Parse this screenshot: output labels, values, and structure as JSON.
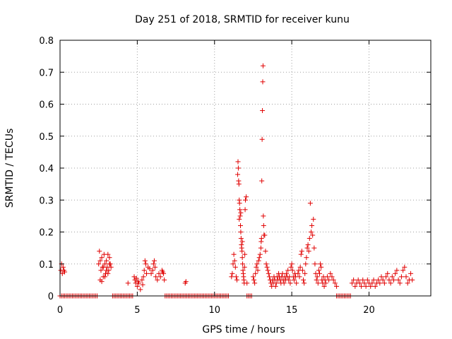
{
  "chart_data": {
    "type": "scatter",
    "title": "Day 251 of 2018, SRMTID for receiver kunu",
    "xlabel": "GPS time / hours",
    "ylabel": "SRMTID / TECUs",
    "xlim": [
      0,
      24
    ],
    "ylim": [
      0,
      0.8
    ],
    "xticks": [
      0,
      5,
      10,
      15,
      20
    ],
    "xtick_labels": [
      "0",
      "5",
      "10",
      "15",
      "20"
    ],
    "yticks": [
      0,
      0.1,
      0.2,
      0.3,
      0.4,
      0.5,
      0.6,
      0.7,
      0.8
    ],
    "ytick_labels": [
      "0",
      "0.1",
      "0.2",
      "0.3",
      "0.4",
      "0.5",
      "0.6",
      "0.7",
      "0.8"
    ],
    "grid": true,
    "marker": "+",
    "color": "#e00000",
    "series": [
      {
        "name": "SRMTID",
        "points": [
          [
            0.05,
            0.08
          ],
          [
            0.1,
            0.1
          ],
          [
            0.15,
            0.07
          ],
          [
            0.2,
            0.09
          ],
          [
            0.25,
            0.08
          ],
          [
            0.3,
            0.075
          ],
          [
            2.5,
            0.1
          ],
          [
            2.55,
            0.14
          ],
          [
            2.6,
            0.05
          ],
          [
            2.65,
            0.08
          ],
          [
            2.7,
            0.12
          ],
          [
            2.75,
            0.09
          ],
          [
            2.8,
            0.06
          ],
          [
            2.85,
            0.13
          ],
          [
            2.9,
            0.1
          ],
          [
            2.95,
            0.07
          ],
          [
            3.0,
            0.11
          ],
          [
            3.05,
            0.09
          ],
          [
            3.1,
            0.13
          ],
          [
            3.15,
            0.08
          ],
          [
            3.2,
            0.12
          ],
          [
            3.25,
            0.1
          ],
          [
            3.3,
            0.09
          ],
          [
            2.6,
            0.11
          ],
          [
            2.8,
            0.09
          ],
          [
            3.0,
            0.08
          ],
          [
            3.2,
            0.1
          ],
          [
            2.7,
            0.045
          ],
          [
            2.9,
            0.06
          ],
          [
            3.1,
            0.07
          ],
          [
            4.4,
            0.04
          ],
          [
            4.8,
            0.06
          ],
          [
            4.85,
            0.05
          ],
          [
            4.9,
            0.04
          ],
          [
            4.95,
            0.055
          ],
          [
            5.0,
            0.03
          ],
          [
            5.05,
            0.045
          ],
          [
            5.1,
            0.04
          ],
          [
            5.2,
            0.02
          ],
          [
            5.3,
            0.05
          ],
          [
            5.35,
            0.035
          ],
          [
            5.4,
            0.06
          ],
          [
            5.45,
            0.08
          ],
          [
            5.5,
            0.11
          ],
          [
            5.55,
            0.1
          ],
          [
            5.6,
            0.07
          ],
          [
            5.7,
            0.09
          ],
          [
            5.8,
            0.085
          ],
          [
            5.9,
            0.07
          ],
          [
            6.0,
            0.08
          ],
          [
            6.05,
            0.1
          ],
          [
            6.1,
            0.11
          ],
          [
            6.15,
            0.09
          ],
          [
            6.2,
            0.06
          ],
          [
            6.3,
            0.05
          ],
          [
            6.4,
            0.07
          ],
          [
            6.5,
            0.06
          ],
          [
            6.6,
            0.08
          ],
          [
            6.65,
            0.075
          ],
          [
            6.7,
            0.07
          ],
          [
            6.75,
            0.05
          ],
          [
            8.1,
            0.04
          ],
          [
            8.15,
            0.045
          ],
          [
            11.1,
            0.06
          ],
          [
            11.15,
            0.07
          ],
          [
            11.2,
            0.1
          ],
          [
            11.25,
            0.13
          ],
          [
            11.3,
            0.11
          ],
          [
            11.35,
            0.09
          ],
          [
            11.4,
            0.06
          ],
          [
            11.45,
            0.05
          ],
          [
            11.5,
            0.38
          ],
          [
            11.52,
            0.42
          ],
          [
            11.54,
            0.4
          ],
          [
            11.56,
            0.36
          ],
          [
            11.58,
            0.35
          ],
          [
            11.6,
            0.3
          ],
          [
            11.62,
            0.29
          ],
          [
            11.64,
            0.27
          ],
          [
            11.66,
            0.25
          ],
          [
            11.68,
            0.22
          ],
          [
            11.7,
            0.2
          ],
          [
            11.72,
            0.18
          ],
          [
            11.74,
            0.16
          ],
          [
            11.76,
            0.15
          ],
          [
            11.78,
            0.14
          ],
          [
            11.8,
            0.12
          ],
          [
            11.82,
            0.1
          ],
          [
            11.84,
            0.08
          ],
          [
            11.86,
            0.07
          ],
          [
            11.88,
            0.06
          ],
          [
            11.9,
            0.05
          ],
          [
            11.92,
            0.04
          ],
          [
            11.94,
            0.09
          ],
          [
            11.96,
            0.13
          ],
          [
            11.98,
            0.27
          ],
          [
            12.0,
            0.3
          ],
          [
            12.05,
            0.31
          ],
          [
            12.1,
            0.04
          ],
          [
            11.6,
            0.24
          ],
          [
            11.7,
            0.26
          ],
          [
            11.8,
            0.17
          ],
          [
            12.5,
            0.06
          ],
          [
            12.55,
            0.05
          ],
          [
            12.6,
            0.04
          ],
          [
            12.65,
            0.07
          ],
          [
            12.7,
            0.09
          ],
          [
            12.75,
            0.1
          ],
          [
            12.8,
            0.08
          ],
          [
            12.85,
            0.11
          ],
          [
            12.9,
            0.12
          ],
          [
            12.95,
            0.13
          ],
          [
            13.0,
            0.15
          ],
          [
            13.02,
            0.17
          ],
          [
            13.04,
            0.18
          ],
          [
            13.06,
            0.36
          ],
          [
            13.08,
            0.49
          ],
          [
            13.1,
            0.58
          ],
          [
            13.12,
            0.67
          ],
          [
            13.14,
            0.72
          ],
          [
            13.16,
            0.25
          ],
          [
            13.18,
            0.22
          ],
          [
            13.2,
            0.19
          ],
          [
            13.25,
            0.19
          ],
          [
            13.3,
            0.14
          ],
          [
            13.35,
            0.1
          ],
          [
            13.4,
            0.09
          ],
          [
            13.45,
            0.08
          ],
          [
            13.5,
            0.07
          ],
          [
            13.55,
            0.06
          ],
          [
            13.6,
            0.05
          ],
          [
            13.65,
            0.04
          ],
          [
            13.7,
            0.03
          ],
          [
            13.75,
            0.05
          ],
          [
            13.8,
            0.04
          ],
          [
            13.85,
            0.06
          ],
          [
            13.9,
            0.05
          ],
          [
            13.95,
            0.03
          ],
          [
            14.0,
            0.04
          ],
          [
            14.05,
            0.06
          ],
          [
            14.1,
            0.05
          ],
          [
            14.15,
            0.07
          ],
          [
            14.2,
            0.06
          ],
          [
            14.25,
            0.05
          ],
          [
            14.3,
            0.04
          ],
          [
            14.35,
            0.06
          ],
          [
            14.4,
            0.07
          ],
          [
            14.45,
            0.05
          ],
          [
            14.5,
            0.04
          ],
          [
            14.55,
            0.06
          ],
          [
            14.6,
            0.05
          ],
          [
            14.65,
            0.07
          ],
          [
            14.7,
            0.06
          ],
          [
            14.75,
            0.08
          ],
          [
            14.8,
            0.05
          ],
          [
            14.85,
            0.06
          ],
          [
            14.9,
            0.04
          ],
          [
            14.95,
            0.09
          ],
          [
            15.0,
            0.1
          ],
          [
            15.05,
            0.08
          ],
          [
            15.1,
            0.06
          ],
          [
            15.15,
            0.05
          ],
          [
            15.2,
            0.07
          ],
          [
            15.25,
            0.06
          ],
          [
            15.3,
            0.04
          ],
          [
            15.4,
            0.07
          ],
          [
            15.45,
            0.08
          ],
          [
            15.5,
            0.06
          ],
          [
            15.55,
            0.09
          ],
          [
            15.6,
            0.13
          ],
          [
            15.65,
            0.14
          ],
          [
            15.7,
            0.08
          ],
          [
            15.75,
            0.05
          ],
          [
            15.8,
            0.04
          ],
          [
            15.85,
            0.07
          ],
          [
            15.9,
            0.1
          ],
          [
            15.95,
            0.12
          ],
          [
            16.0,
            0.15
          ],
          [
            16.05,
            0.16
          ],
          [
            16.1,
            0.14
          ],
          [
            16.15,
            0.18
          ],
          [
            16.2,
            0.29
          ],
          [
            16.25,
            0.2
          ],
          [
            16.3,
            0.22
          ],
          [
            16.35,
            0.19
          ],
          [
            16.4,
            0.24
          ],
          [
            16.45,
            0.15
          ],
          [
            16.5,
            0.1
          ],
          [
            16.55,
            0.07
          ],
          [
            16.6,
            0.05
          ],
          [
            16.65,
            0.06
          ],
          [
            16.7,
            0.04
          ],
          [
            16.75,
            0.08
          ],
          [
            16.8,
            0.07
          ],
          [
            16.85,
            0.1
          ],
          [
            16.9,
            0.09
          ],
          [
            16.95,
            0.05
          ],
          [
            17.0,
            0.04
          ],
          [
            17.05,
            0.06
          ],
          [
            17.1,
            0.03
          ],
          [
            17.15,
            0.05
          ],
          [
            17.2,
            0.04
          ],
          [
            17.3,
            0.06
          ],
          [
            17.4,
            0.05
          ],
          [
            17.5,
            0.07
          ],
          [
            17.6,
            0.06
          ],
          [
            17.7,
            0.05
          ],
          [
            17.8,
            0.04
          ],
          [
            17.9,
            0.03
          ],
          [
            18.9,
            0.04
          ],
          [
            19.0,
            0.05
          ],
          [
            19.1,
            0.03
          ],
          [
            19.2,
            0.04
          ],
          [
            19.3,
            0.05
          ],
          [
            19.4,
            0.04
          ],
          [
            19.5,
            0.03
          ],
          [
            19.6,
            0.05
          ],
          [
            19.7,
            0.04
          ],
          [
            19.8,
            0.03
          ],
          [
            19.9,
            0.05
          ],
          [
            20.0,
            0.04
          ],
          [
            20.1,
            0.03
          ],
          [
            20.2,
            0.04
          ],
          [
            20.3,
            0.05
          ],
          [
            20.4,
            0.03
          ],
          [
            20.5,
            0.04
          ],
          [
            20.6,
            0.05
          ],
          [
            20.7,
            0.04
          ],
          [
            20.8,
            0.06
          ],
          [
            20.9,
            0.05
          ],
          [
            21.0,
            0.04
          ],
          [
            21.1,
            0.06
          ],
          [
            21.2,
            0.07
          ],
          [
            21.3,
            0.05
          ],
          [
            21.4,
            0.04
          ],
          [
            21.5,
            0.06
          ],
          [
            21.6,
            0.05
          ],
          [
            21.7,
            0.07
          ],
          [
            21.8,
            0.08
          ],
          [
            21.9,
            0.05
          ],
          [
            22.0,
            0.04
          ],
          [
            22.1,
            0.06
          ],
          [
            22.2,
            0.08
          ],
          [
            22.3,
            0.09
          ],
          [
            22.4,
            0.06
          ],
          [
            22.5,
            0.04
          ],
          [
            22.6,
            0.05
          ],
          [
            22.7,
            0.07
          ],
          [
            22.8,
            0.05
          ]
        ],
        "zero_segments": [
          [
            0.0,
            2.45
          ],
          [
            3.4,
            4.75
          ],
          [
            6.8,
            10.9
          ],
          [
            12.1,
            12.45
          ],
          [
            17.9,
            18.85
          ]
        ],
        "zero_step": 0.1
      }
    ]
  }
}
